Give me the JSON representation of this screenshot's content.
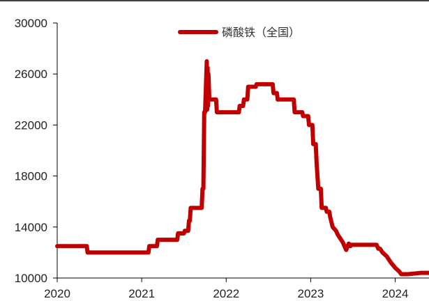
{
  "chart_data": {
    "type": "line",
    "title": "",
    "xlabel": "",
    "ylabel": "",
    "xlim": [
      2020.0,
      2024.4
    ],
    "ylim": [
      10000,
      30000
    ],
    "x_ticks": [
      {
        "value": 2020,
        "label": "2020"
      },
      {
        "value": 2021,
        "label": "2021"
      },
      {
        "value": 2022,
        "label": "2022"
      },
      {
        "value": 2023,
        "label": "2023"
      },
      {
        "value": 2024,
        "label": "2024"
      }
    ],
    "y_ticks": [
      {
        "value": 10000,
        "label": "10000"
      },
      {
        "value": 14000,
        "label": "14000"
      },
      {
        "value": 18000,
        "label": "18000"
      },
      {
        "value": 22000,
        "label": "22000"
      },
      {
        "value": 26000,
        "label": "26000"
      },
      {
        "value": 30000,
        "label": "30000"
      }
    ],
    "grid": false,
    "legend_position": "top-center",
    "series": [
      {
        "name": "磷酸铁（全国）",
        "color": "#c00000",
        "x": [
          2020.0,
          2020.35,
          2020.36,
          2021.08,
          2021.09,
          2021.18,
          2021.19,
          2021.42,
          2021.43,
          2021.5,
          2021.51,
          2021.55,
          2021.56,
          2021.57,
          2021.58,
          2021.71,
          2021.72,
          2021.73,
          2021.74,
          2021.75,
          2021.76,
          2021.77,
          2021.775,
          2021.78,
          2021.785,
          2021.79,
          2021.8,
          2021.81,
          2021.82,
          2021.88,
          2021.89,
          2022.15,
          2022.16,
          2022.2,
          2022.21,
          2022.25,
          2022.26,
          2022.3,
          2022.31,
          2022.35,
          2022.36,
          2022.55,
          2022.56,
          2022.6,
          2022.61,
          2022.8,
          2022.81,
          2022.9,
          2022.91,
          2022.97,
          2022.98,
          2023.02,
          2023.03,
          2023.06,
          2023.07,
          2023.08,
          2023.09,
          2023.12,
          2023.13,
          2023.18,
          2023.19,
          2023.22,
          2023.23,
          2023.26,
          2023.3,
          2023.32,
          2023.36,
          2023.38,
          2023.4,
          2023.42,
          2023.45,
          2023.47,
          2023.48,
          2023.5,
          2023.55,
          2023.65,
          2023.78,
          2023.8,
          2023.82,
          2023.85,
          2023.9,
          2023.95,
          2024.0,
          2024.05,
          2024.07,
          2024.15,
          2024.3,
          2024.4
        ],
        "values": [
          12500,
          12500,
          12000,
          12000,
          12500,
          12500,
          13000,
          13000,
          13500,
          13500,
          13700,
          13700,
          14500,
          14500,
          15500,
          15500,
          17000,
          17000,
          23000,
          23000,
          25000,
          27000,
          23200,
          26500,
          23500,
          26000,
          24000,
          24000,
          24000,
          24000,
          23000,
          23000,
          23500,
          23500,
          24000,
          24000,
          25000,
          25000,
          25000,
          25000,
          25200,
          25200,
          24500,
          24500,
          24000,
          24000,
          23000,
          23000,
          22700,
          22700,
          22000,
          22000,
          20500,
          20500,
          19000,
          18000,
          17000,
          17000,
          15500,
          15500,
          15200,
          15200,
          14800,
          14000,
          13700,
          13400,
          13000,
          12800,
          12500,
          12200,
          12700,
          12500,
          12600,
          12600,
          12600,
          12600,
          12600,
          12300,
          12300,
          12000,
          11700,
          11200,
          10800,
          10500,
          10300,
          10300,
          10400,
          10400
        ]
      }
    ]
  }
}
